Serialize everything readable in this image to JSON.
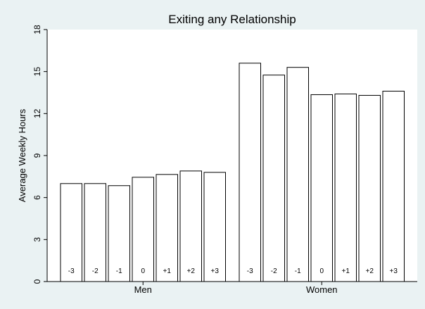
{
  "chart_data": {
    "type": "bar",
    "title": "Exiting any Relationship",
    "ylabel": "Average Weekly Hours",
    "xlabel": "",
    "ylim": [
      0,
      18
    ],
    "yticks": [
      0,
      3,
      6,
      9,
      12,
      15,
      18
    ],
    "grid": false,
    "legend": "none",
    "bar_color": "#ffffff",
    "background": "#eaf2f3",
    "plot_background": "#ffffff",
    "groups": [
      {
        "name": "Men",
        "categories": [
          "-3",
          "-2",
          "-1",
          "0",
          "+1",
          "+2",
          "+3"
        ],
        "values": [
          7.0,
          7.0,
          6.85,
          7.45,
          7.65,
          7.9,
          7.8
        ]
      },
      {
        "name": "Women",
        "categories": [
          "-3",
          "-2",
          "-1",
          "0",
          "+1",
          "+2",
          "+3"
        ],
        "values": [
          15.6,
          14.75,
          15.3,
          13.35,
          13.4,
          13.3,
          13.6
        ]
      }
    ]
  }
}
